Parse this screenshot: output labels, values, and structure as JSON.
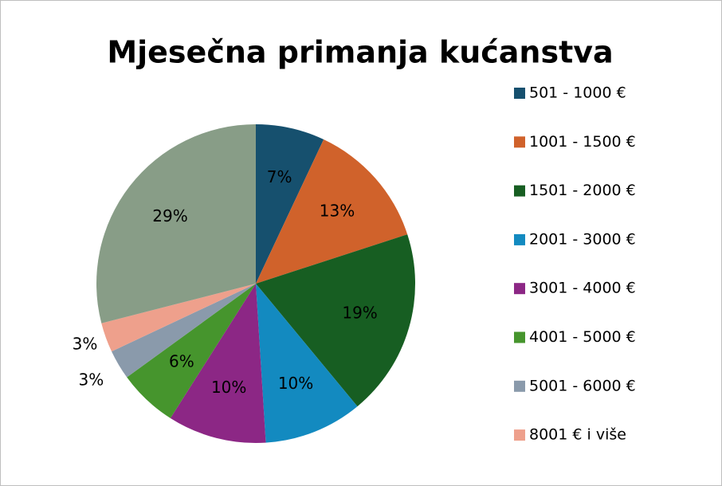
{
  "chart_data": {
    "type": "pie",
    "title": "Mjesečna primanja kućanstva",
    "categories": [
      "501 - 1000 €",
      "1001 - 1500 €",
      "1501 - 2000 €",
      "2001 - 3000 €",
      "3001 - 4000 €",
      "4001 - 5000 €",
      "5001 - 6000 €",
      "8001 € i više",
      null
    ],
    "values": [
      7,
      13,
      19,
      10,
      10,
      6,
      3,
      3,
      29
    ],
    "value_labels": [
      "7%",
      "13%",
      "19%",
      "10%",
      "10%",
      "6%",
      "3%",
      "3%",
      "29%"
    ],
    "colors": [
      "#16506e",
      "#d0622b",
      "#175e22",
      "#138ac0",
      "#8c2785",
      "#46952d",
      "#8a9aab",
      "#eea08c",
      "#889d87"
    ],
    "legend": "right"
  }
}
